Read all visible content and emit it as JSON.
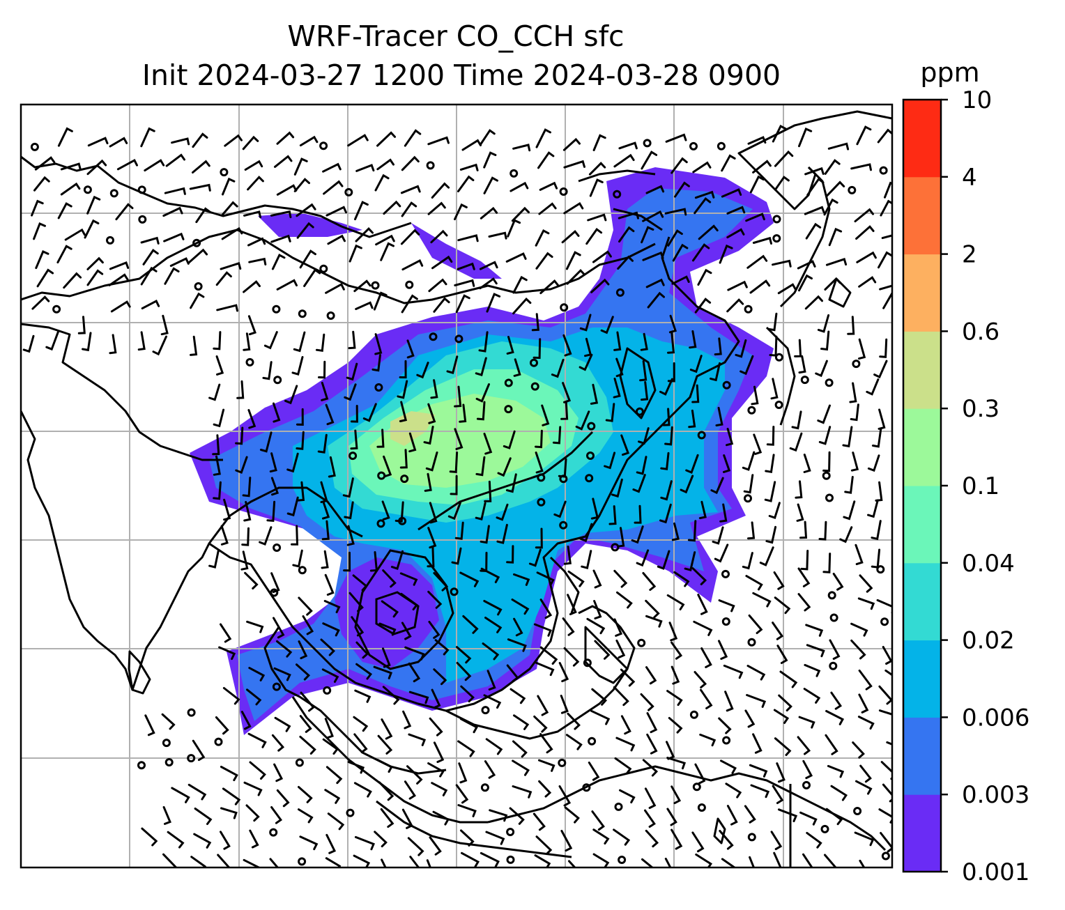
{
  "title": {
    "line1": "WRF-Tracer CO_CCH sfc",
    "line2": "Init 2024-03-27 1200 Time 2024-03-28 0900"
  },
  "colorbar": {
    "unit": "ppm",
    "levels": [
      "0.001",
      "0.003",
      "0.006",
      "0.02",
      "0.04",
      "0.1",
      "0.3",
      "0.6",
      "2",
      "4",
      "10"
    ],
    "colors": [
      "#6a2cf5",
      "#3575f1",
      "#04b3e8",
      "#33dad3",
      "#6bf6b9",
      "#9cf99a",
      "#cbe08a",
      "#fdb060",
      "#fd7138",
      "#fe2b14"
    ]
  },
  "map": {
    "region": "South and East Asia",
    "gridlines": true,
    "features": [
      "coastlines",
      "country borders"
    ],
    "wind_barbs": true,
    "contours": true
  },
  "colors": {
    "background": "#ffffff",
    "gridline": "#b0b0b0",
    "coastline": "#000000"
  }
}
